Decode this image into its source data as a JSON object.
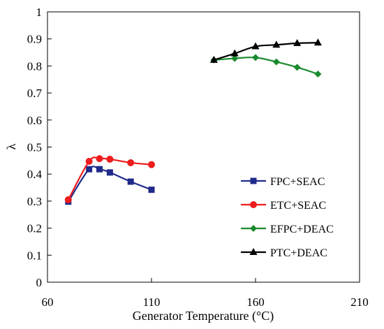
{
  "chart_data": {
    "type": "line",
    "xlabel": "Generator Temperature (°C)",
    "ylabel": "λ",
    "xlim": [
      60,
      210
    ],
    "ylim": [
      0,
      1
    ],
    "xticks": [
      "60",
      "110",
      "160",
      "210"
    ],
    "yticks": [
      "0",
      "0.1",
      "0.2",
      "0.3",
      "0.4",
      "0.5",
      "0.6",
      "0.7",
      "0.8",
      "0.9",
      "1"
    ],
    "grid": false,
    "legend_position": "bottom-right",
    "series": [
      {
        "name": "FPC+SEAC",
        "color": "#1f2a8a",
        "marker": "square",
        "x": [
          70,
          80,
          85,
          90,
          100,
          110
        ],
        "y": [
          0.298,
          0.418,
          0.418,
          0.406,
          0.372,
          0.342
        ]
      },
      {
        "name": "ETC+SEAC",
        "color": "#ee1c1c",
        "marker": "circle",
        "x": [
          70,
          80,
          85,
          90,
          100,
          110
        ],
        "y": [
          0.305,
          0.447,
          0.457,
          0.455,
          0.442,
          0.435
        ]
      },
      {
        "name": "EFPC+DEAC",
        "color": "#1a8a2e",
        "marker": "diamond",
        "x": [
          140,
          150,
          160,
          170,
          180,
          190
        ],
        "y": [
          0.822,
          0.828,
          0.831,
          0.815,
          0.795,
          0.77
        ]
      },
      {
        "name": "PTC+DEAC",
        "color": "#000000",
        "marker": "triangle",
        "x": [
          140,
          150,
          160,
          170,
          180,
          190
        ],
        "y": [
          0.822,
          0.846,
          0.872,
          0.878,
          0.884,
          0.886
        ]
      }
    ]
  }
}
